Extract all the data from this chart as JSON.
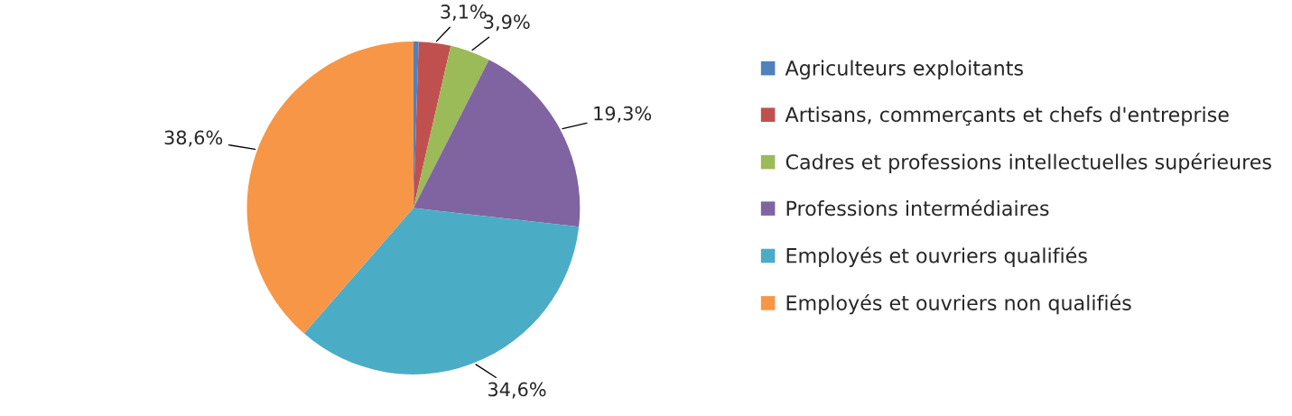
{
  "chart_data": {
    "type": "pie",
    "categories": [
      "Agriculteurs exploitants",
      "Artisans, commerçants et chefs d'entreprise",
      "Cadres et professions intellectuelles supérieures",
      "Professions intermédiaires",
      "Employés et ouvriers qualifiés",
      "Employés et ouvriers non qualifiés"
    ],
    "values": [
      0.5,
      3.1,
      3.9,
      19.3,
      34.6,
      38.6
    ],
    "value_labels": [
      null,
      "3,1%",
      "3,9%",
      "19,3%",
      "34,6%",
      "38,6%"
    ],
    "colors": [
      "#4f81bd",
      "#c0504d",
      "#9bbb59",
      "#8064a2",
      "#4bacc6",
      "#f79646"
    ],
    "legend": "right"
  }
}
